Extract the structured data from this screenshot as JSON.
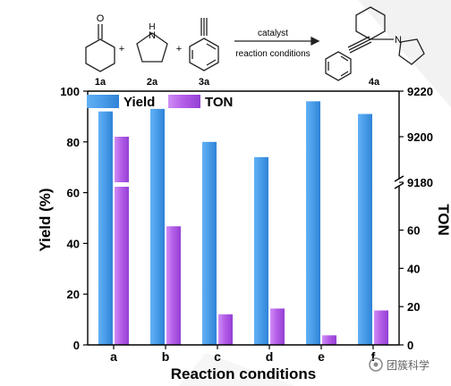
{
  "scheme": {
    "labels": [
      "1a",
      "2a",
      "3a",
      "4a"
    ],
    "arrow_top": "catalyst",
    "arrow_bottom": "reaction conditions",
    "ketone_atom": "O",
    "amine_atom": "H",
    "amine_n": "N",
    "product_n": "N",
    "plus": "+"
  },
  "chart_data": {
    "type": "bar",
    "categories": [
      "a",
      "b",
      "c",
      "d",
      "e",
      "f"
    ],
    "xlabel": "Reaction conditions",
    "ylabel_left": "Yield (%)",
    "ylabel_right": "TON",
    "ylim_left": [
      0,
      100
    ],
    "yticks_left": [
      "0",
      "20",
      "40",
      "60",
      "80",
      "100"
    ],
    "right_axis_lower": {
      "ylim": [
        0,
        85
      ],
      "ticks": [
        "0",
        "20",
        "40",
        "60"
      ]
    },
    "right_axis_upper": {
      "ylim": [
        9180,
        9220
      ],
      "ticks": [
        "9180",
        "9200",
        "9220"
      ]
    },
    "grid": false,
    "legend_position": "top-left",
    "series": [
      {
        "name": "Yield",
        "axis": "left",
        "color": "#4a9eea",
        "values": [
          92,
          93,
          80,
          74,
          96,
          91
        ]
      },
      {
        "name": "TON",
        "axis": "right",
        "color": "#b45ee8",
        "values": [
          9200,
          62,
          16,
          19,
          5,
          18
        ]
      }
    ]
  },
  "watermark": {
    "text": "团簇科学"
  }
}
